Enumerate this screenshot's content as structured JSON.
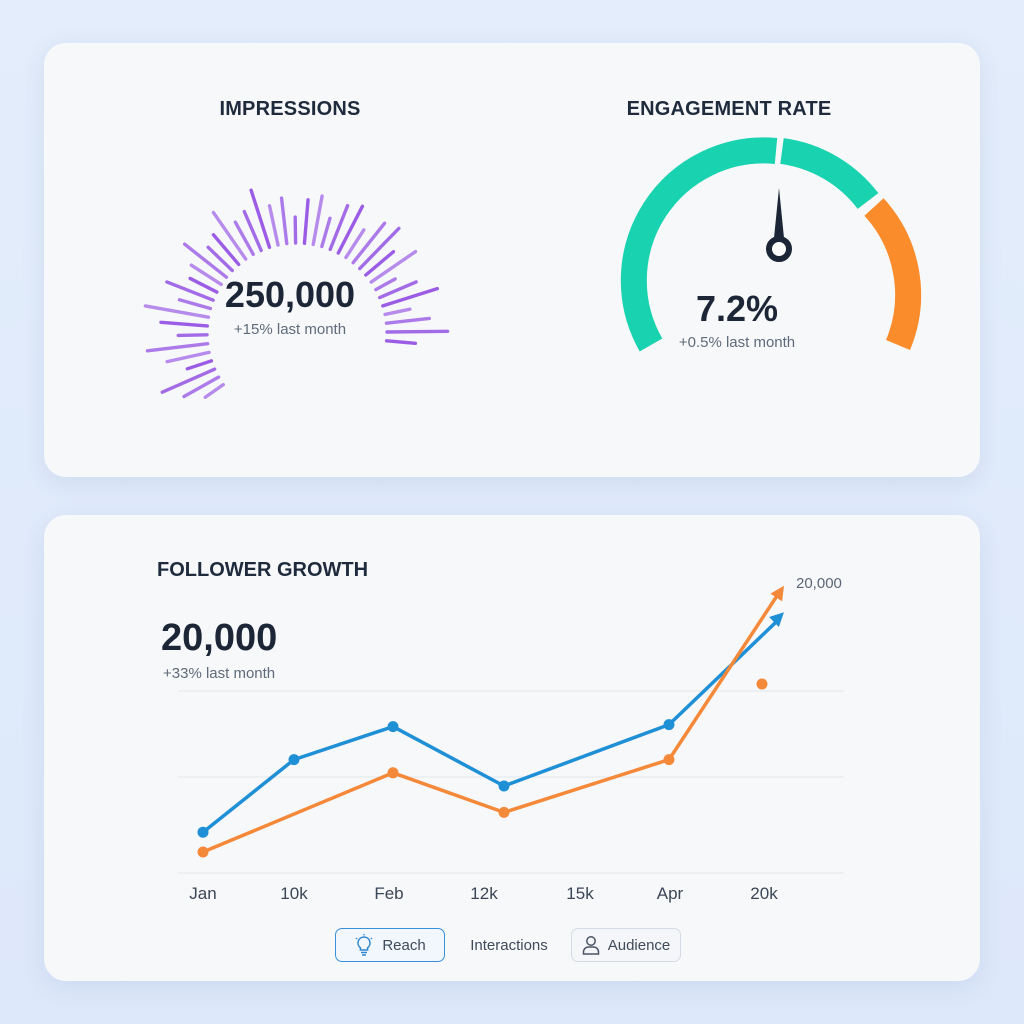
{
  "impressions": {
    "title": "IMPRESSIONS",
    "value": "250,000",
    "change": "+15% last month",
    "bar_color": "#9b5de5"
  },
  "engagement": {
    "title": "ENGAGEMENT RATE",
    "value": "7.2%",
    "change": "+0.5% last month",
    "colors": {
      "teal": "#19d3b0",
      "orange": "#fb8c2c",
      "needle": "#1c2636"
    }
  },
  "follower_growth": {
    "title": "FOLLOWER GROWTH",
    "value": "20,000",
    "change": "+33% last month",
    "end_label": "20,000",
    "legend": [
      {
        "label": "Reach",
        "icon": "lightbulb-icon",
        "active": true
      },
      {
        "label": "Interactions",
        "icon": "",
        "active": false
      },
      {
        "label": "Audience",
        "icon": "user-icon",
        "active": false
      }
    ]
  },
  "chart_data": {
    "type": "line",
    "x": [
      "Jan",
      "10k",
      "Feb",
      "12k",
      "15k",
      "Apr",
      "20k"
    ],
    "series": [
      {
        "values": [
          3,
          14,
          19,
          10,
          null,
          19.3,
          33
        ],
        "color": "#1f8fd6"
      },
      {
        "values": [
          0,
          null,
          12,
          6,
          null,
          14,
          37
        ],
        "color": "#f5893a"
      }
    ],
    "grid": true
  }
}
